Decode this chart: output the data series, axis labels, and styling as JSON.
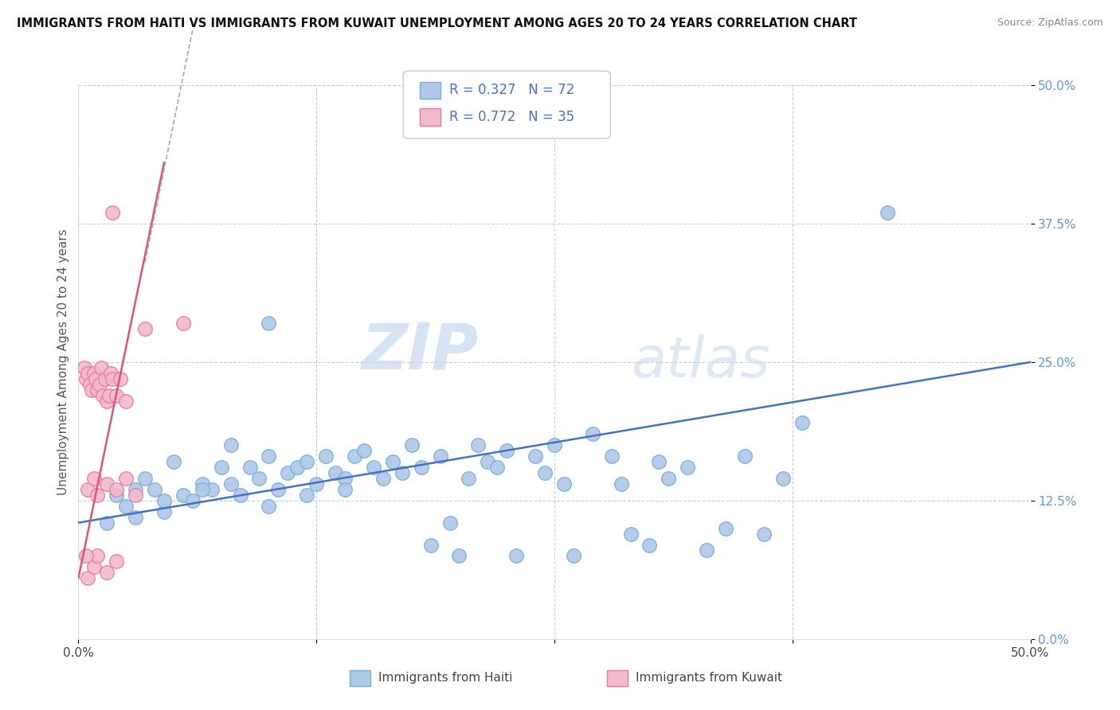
{
  "title": "IMMIGRANTS FROM HAITI VS IMMIGRANTS FROM KUWAIT UNEMPLOYMENT AMONG AGES 20 TO 24 YEARS CORRELATION CHART",
  "source": "Source: ZipAtlas.com",
  "ylabel": "Unemployment Among Ages 20 to 24 years",
  "ytick_labels": [
    "0.0%",
    "12.5%",
    "25.0%",
    "37.5%",
    "50.0%"
  ],
  "ytick_values": [
    0.0,
    12.5,
    25.0,
    37.5,
    50.0
  ],
  "xtick_labels": [
    "0.0%",
    "50.0%"
  ],
  "xtick_values": [
    0.0,
    50.0
  ],
  "xlim": [
    0.0,
    50.0
  ],
  "ylim": [
    0.0,
    50.0
  ],
  "haiti_color": "#adc8e8",
  "haiti_edge": "#7aafd4",
  "kuwait_color": "#f2b8cc",
  "kuwait_edge": "#e87aa0",
  "haiti_R": 0.327,
  "haiti_N": 72,
  "kuwait_R": 0.772,
  "kuwait_N": 35,
  "haiti_trend_color": "#4472c4",
  "kuwait_trend_color": "#e05080",
  "kuwait_trend_dashed_color": "#bbbbbb",
  "watermark_zip": "ZIP",
  "watermark_atlas": "atlas",
  "legend_haiti": "Immigrants from Haiti",
  "legend_kuwait": "Immigrants from Kuwait",
  "haiti_scatter": [
    [
      1.5,
      10.5
    ],
    [
      2.0,
      13.0
    ],
    [
      2.5,
      12.0
    ],
    [
      3.0,
      11.0
    ],
    [
      3.5,
      14.5
    ],
    [
      4.0,
      13.5
    ],
    [
      4.5,
      11.5
    ],
    [
      5.0,
      16.0
    ],
    [
      5.5,
      13.0
    ],
    [
      6.0,
      12.5
    ],
    [
      6.5,
      14.0
    ],
    [
      7.0,
      13.5
    ],
    [
      7.5,
      15.5
    ],
    [
      8.0,
      14.0
    ],
    [
      8.5,
      13.0
    ],
    [
      9.0,
      15.5
    ],
    [
      9.5,
      14.5
    ],
    [
      10.0,
      16.5
    ],
    [
      10.5,
      13.5
    ],
    [
      11.0,
      15.0
    ],
    [
      11.5,
      15.5
    ],
    [
      12.0,
      16.0
    ],
    [
      12.5,
      14.0
    ],
    [
      13.0,
      16.5
    ],
    [
      13.5,
      15.0
    ],
    [
      14.0,
      14.5
    ],
    [
      14.5,
      16.5
    ],
    [
      15.0,
      17.0
    ],
    [
      15.5,
      15.5
    ],
    [
      16.0,
      14.5
    ],
    [
      16.5,
      16.0
    ],
    [
      17.0,
      15.0
    ],
    [
      17.5,
      17.5
    ],
    [
      18.0,
      15.5
    ],
    [
      18.5,
      8.5
    ],
    [
      19.0,
      16.5
    ],
    [
      19.5,
      10.5
    ],
    [
      20.0,
      7.5
    ],
    [
      20.5,
      14.5
    ],
    [
      21.0,
      17.5
    ],
    [
      21.5,
      16.0
    ],
    [
      22.0,
      15.5
    ],
    [
      22.5,
      17.0
    ],
    [
      23.0,
      7.5
    ],
    [
      24.0,
      16.5
    ],
    [
      24.5,
      15.0
    ],
    [
      25.0,
      17.5
    ],
    [
      25.5,
      14.0
    ],
    [
      26.0,
      7.5
    ],
    [
      27.0,
      18.5
    ],
    [
      28.0,
      16.5
    ],
    [
      28.5,
      14.0
    ],
    [
      29.0,
      9.5
    ],
    [
      30.0,
      8.5
    ],
    [
      30.5,
      16.0
    ],
    [
      31.0,
      14.5
    ],
    [
      32.0,
      15.5
    ],
    [
      33.0,
      8.0
    ],
    [
      34.0,
      10.0
    ],
    [
      35.0,
      16.5
    ],
    [
      36.0,
      9.5
    ],
    [
      37.0,
      14.5
    ],
    [
      38.0,
      19.5
    ],
    [
      10.0,
      28.5
    ],
    [
      42.5,
      38.5
    ],
    [
      3.0,
      13.5
    ],
    [
      4.5,
      12.5
    ],
    [
      6.5,
      13.5
    ],
    [
      8.0,
      17.5
    ],
    [
      10.0,
      12.0
    ],
    [
      12.0,
      13.0
    ],
    [
      14.0,
      13.5
    ]
  ],
  "kuwait_scatter": [
    [
      0.3,
      24.5
    ],
    [
      0.4,
      23.5
    ],
    [
      0.5,
      24.0
    ],
    [
      0.6,
      23.0
    ],
    [
      0.7,
      22.5
    ],
    [
      0.8,
      24.0
    ],
    [
      0.9,
      23.5
    ],
    [
      1.0,
      22.5
    ],
    [
      1.1,
      23.0
    ],
    [
      1.2,
      24.5
    ],
    [
      1.3,
      22.0
    ],
    [
      1.4,
      23.5
    ],
    [
      1.5,
      21.5
    ],
    [
      1.6,
      22.0
    ],
    [
      1.7,
      24.0
    ],
    [
      1.8,
      23.5
    ],
    [
      2.0,
      22.0
    ],
    [
      2.2,
      23.5
    ],
    [
      2.5,
      21.5
    ],
    [
      0.5,
      13.5
    ],
    [
      0.8,
      14.5
    ],
    [
      1.0,
      13.0
    ],
    [
      1.5,
      14.0
    ],
    [
      2.0,
      13.5
    ],
    [
      2.5,
      14.5
    ],
    [
      3.0,
      13.0
    ],
    [
      0.5,
      5.5
    ],
    [
      0.8,
      6.5
    ],
    [
      1.0,
      7.5
    ],
    [
      1.5,
      6.0
    ],
    [
      2.0,
      7.0
    ],
    [
      0.4,
      7.5
    ],
    [
      1.8,
      38.5
    ],
    [
      5.5,
      28.5
    ],
    [
      3.5,
      28.0
    ]
  ]
}
